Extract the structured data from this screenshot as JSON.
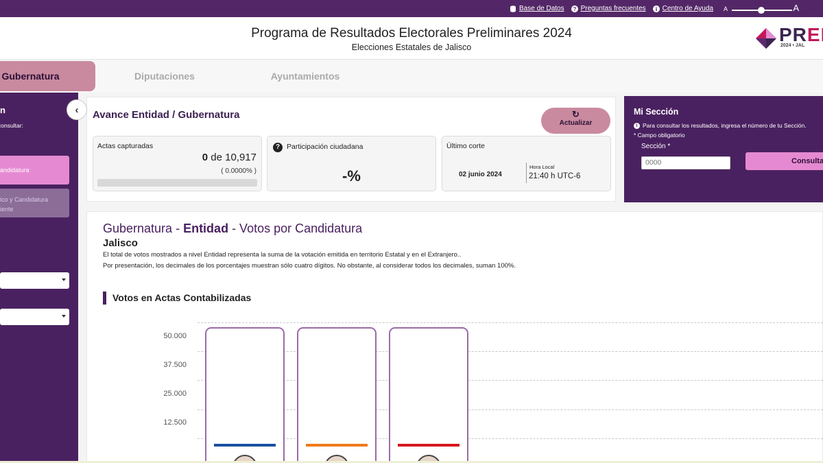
{
  "topbar": {
    "links": [
      {
        "label": "Base de Datos",
        "icon": "database-icon"
      },
      {
        "label": "Preguntas frecuentes",
        "icon": "question-circle-icon"
      },
      {
        "label": "Centro de Ayuda",
        "icon": "info-circle-icon"
      }
    ],
    "zoom": {
      "small_label": "A",
      "large_label": "A"
    }
  },
  "header": {
    "title": "Programa de Resultados Electorales Preliminares 2024",
    "subtitle": "Elecciones Estatales de Jalisco",
    "logo_text_dark": "PR",
    "logo_text_pink": "EP",
    "logo_sub": "2024 • JAL"
  },
  "tabs": [
    "Gubernatura",
    "Diputaciones",
    "Ayuntamientos"
  ],
  "sidebar": {
    "heading": "n",
    "hint": "eseas consultar:",
    "items": [
      "andidatura",
      "ico y Candidatura",
      "iente"
    ]
  },
  "avance": {
    "title": "Avance Entidad / Gubernatura",
    "refresh_label": "Actualizar",
    "actas": {
      "label": "Actas capturadas",
      "captured": "0",
      "of": "de",
      "total": "10,917",
      "percent": "( 0.0000% )",
      "progress": 0
    },
    "participacion": {
      "label": "Participación ciudadana",
      "value": "-%"
    },
    "corte": {
      "label": "Último corte",
      "date": "02 junio 2024",
      "hora_label": "Hora Local",
      "hora_value": "21:40 h UTC-6"
    }
  },
  "miseccion": {
    "title": "Mi Sección",
    "info": "Para consultar los resultados, ingresa el número de tu Sección.",
    "required": "* Campo obligatorio",
    "field_label": "Sección *",
    "placeholder": "0000",
    "button": "Consulta"
  },
  "results": {
    "title_pre": "Gubernatura - ",
    "title_bold": "Entidad",
    "title_post": " - Votos por Candidatura",
    "place": "Jalisco",
    "note1": "El total de votos mostrados a nivel Entidad representa la suma de la votación emitida en territorio Estatal y en el Extranjero..",
    "note2": "Por presentación, los decimales de los porcentajes muestran sólo cuatro dígitos. No obstante, al considerar todos los decimales, suman 100%.",
    "section": "Votos en Actas Contabilizadas"
  },
  "chart_data": {
    "type": "bar",
    "ylim": [
      0,
      50000
    ],
    "yticks": [
      "50.000",
      "37.500",
      "25.000",
      "12.500"
    ],
    "series": [
      {
        "color": "#1a4fa0",
        "value": 0
      },
      {
        "color": "#f07a1a",
        "value": 0
      },
      {
        "color": "#d7161d",
        "value": 0
      }
    ]
  }
}
